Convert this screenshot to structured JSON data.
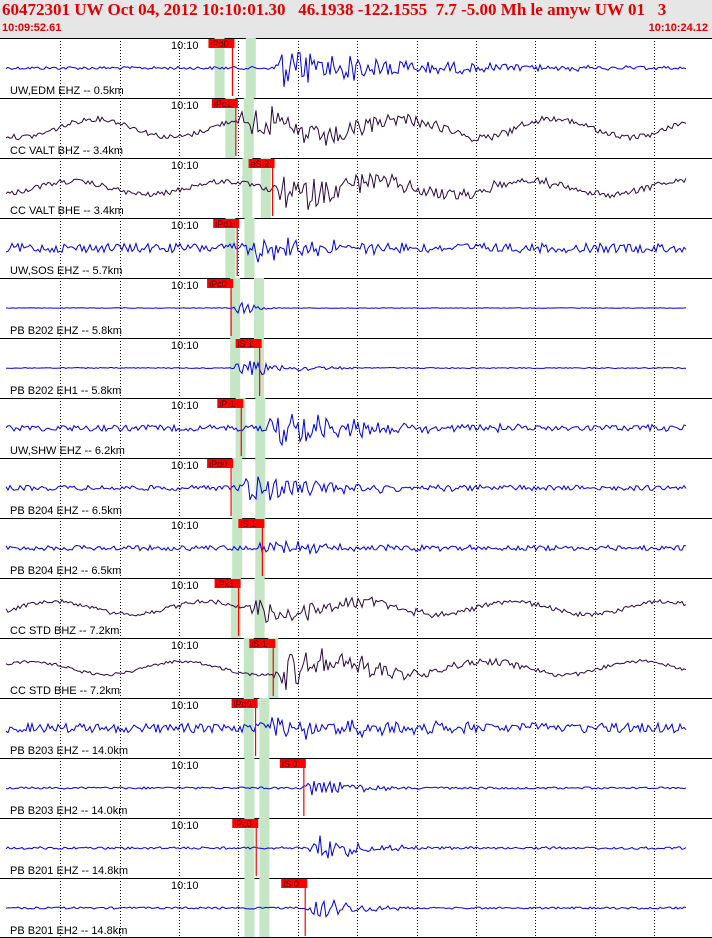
{
  "header": {
    "title": "60472301 UW Oct 04, 2012 10:10:01.30   46.1938 -122.1555  7.7 -5.00 Mh le amyw UW 01   3",
    "start_time": "10:09:52.61",
    "end_time": "10:10:24.12"
  },
  "colors": {
    "header_bg": "#e6e6e6",
    "header_text": "#e00000",
    "trace_blue": "#0000dd",
    "trace_dark": "#2a0a40",
    "pick_red": "#ff0000",
    "pick_window_green": "#c4e6c4"
  },
  "time_label": "10:10",
  "traces": [
    {
      "label": "UW,EDM EHZ -- 0.5km",
      "pick": "iPd0",
      "pick_t": 0.333,
      "win": [
        0.314,
        0.36
      ],
      "onset": 0.39,
      "color": "blue",
      "amp": 0.9,
      "noise": 0.06,
      "decay": 0.18
    },
    {
      "label": "CC VALT BHZ -- 3.4km",
      "pick": "iPc1",
      "pick_t": 0.338,
      "win": [
        0.33,
        0.357
      ],
      "onset": 0.34,
      "color": "dark",
      "amp": 0.7,
      "noise": 0.1,
      "decay": 0.2,
      "wave": 0.35
    },
    {
      "label": "CC VALT BHE -- 3.4km",
      "pick": "eS 2",
      "pick_t": 0.392,
      "win": [
        0.355,
        0.382
      ],
      "onset": 0.39,
      "color": "dark",
      "amp": 0.7,
      "noise": 0.1,
      "decay": 0.22,
      "wave": 0.25
    },
    {
      "label": "UW,SOS EHZ -- 5.7km",
      "pick": "iPd1",
      "pick_t": 0.34,
      "win": [
        0.33,
        0.358
      ],
      "onset": 0.35,
      "color": "blue",
      "amp": 0.6,
      "noise": 0.18,
      "decay": 0.1
    },
    {
      "label": "PB B202 EHZ -- 5.8km",
      "pick": "iPc0",
      "pick_t": 0.331,
      "win": [
        0.337,
        0.372
      ],
      "onset": 0.331,
      "color": "blue",
      "amp": 0.7,
      "noise": 0.01,
      "decay": 0.02
    },
    {
      "label": "PB B202 EH1 -- 5.8km",
      "pick": "iS 1",
      "pick_t": 0.373,
      "win": [
        0.337,
        0.372
      ],
      "onset": 0.331,
      "color": "blue",
      "amp": 0.6,
      "noise": 0.02,
      "decay": 0.06
    },
    {
      "label": "UW,SHW EHZ -- 6.2km",
      "pick": "iP 1",
      "pick_t": 0.346,
      "win": [
        0.345,
        0.374
      ],
      "onset": 0.38,
      "color": "blue",
      "amp": 0.8,
      "noise": 0.12,
      "decay": 0.14
    },
    {
      "label": "PB B204 EHZ -- 6.5km",
      "pick": "iPd0",
      "pick_t": 0.331,
      "win": [
        0.34,
        0.374
      ],
      "onset": 0.34,
      "color": "blue",
      "amp": 0.7,
      "noise": 0.1,
      "decay": 0.12
    },
    {
      "label": "PB B204 EH2 -- 6.5km",
      "pick": "iS 1",
      "pick_t": 0.377,
      "win": [
        0.34,
        0.374
      ],
      "onset": 0.36,
      "color": "blue",
      "amp": 0.3,
      "noise": 0.1,
      "decay": 0.12
    },
    {
      "label": "CC STD BHZ -- 7.2km",
      "pick": "iPx1",
      "pick_t": 0.342,
      "win": [
        0.338,
        0.373
      ],
      "onset": 0.35,
      "color": "dark",
      "amp": 0.6,
      "noise": 0.08,
      "decay": 0.14,
      "wave": 0.25
    },
    {
      "label": "CC STD BHE -- 7.2km",
      "pick": "iS 1",
      "pick_t": 0.393,
      "win": [
        0.357,
        0.393
      ],
      "onset": 0.39,
      "color": "dark",
      "amp": 0.8,
      "noise": 0.06,
      "decay": 0.16,
      "wave": 0.25
    },
    {
      "label": "PB B203 EHZ -- 14.0km",
      "pick": "iPd0",
      "pick_t": 0.367,
      "win": [
        0.357,
        0.38
      ],
      "onset": 0.37,
      "color": "blue",
      "amp": 0.5,
      "noise": 0.18,
      "decay": 0.18
    },
    {
      "label": "PB B203 EH2 -- 14.0km",
      "pick": "iS 0",
      "pick_t": 0.438,
      "win": [
        0.358,
        0.38
      ],
      "onset": 0.435,
      "color": "blue",
      "amp": 0.6,
      "noise": 0.04,
      "decay": 0.06
    },
    {
      "label": "PB B201 EHZ -- 14.8km",
      "pick": "iPc0",
      "pick_t": 0.368,
      "win": [
        0.358,
        0.38
      ],
      "onset": 0.44,
      "color": "blue",
      "amp": 0.8,
      "noise": 0.05,
      "decay": 0.06
    },
    {
      "label": "PB B201 EH2 -- 14.8km",
      "pick": "iS 0",
      "pick_t": 0.44,
      "win": [
        0.358,
        0.38
      ],
      "onset": 0.44,
      "color": "blue",
      "amp": 0.6,
      "noise": 0.04,
      "decay": 0.06
    }
  ]
}
